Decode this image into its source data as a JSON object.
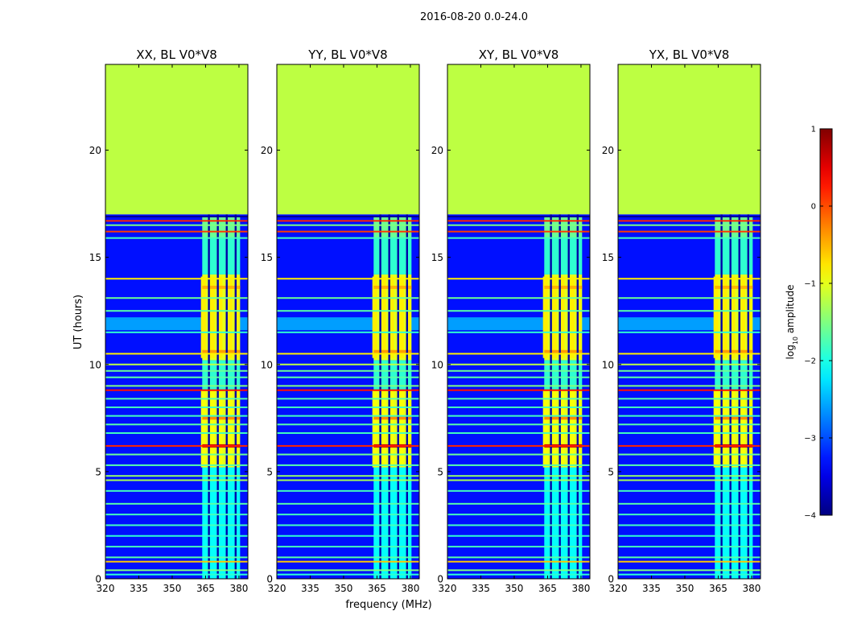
{
  "chart_data": {
    "type": "heatmap",
    "suptitle": "2016-08-20 0.0-24.0",
    "xlabel": "frequency (MHz)",
    "ylabel": "UT (hours)",
    "xlim": [
      320,
      384
    ],
    "ylim": [
      0,
      24
    ],
    "xticks": [
      320,
      335,
      350,
      365,
      380
    ],
    "yticks": [
      0,
      5,
      10,
      15,
      20
    ],
    "panels": [
      {
        "title": "XX, BL V0*V8"
      },
      {
        "title": "YY, BL V0*V8"
      },
      {
        "title": "XY, BL V0*V8"
      },
      {
        "title": "YX, BL V0*V8"
      }
    ],
    "colorbar": {
      "label": "log",
      "label_sub": "10",
      "label_suffix": " amplitude",
      "range": [
        -4,
        1
      ],
      "ticks": [
        1,
        0,
        -1,
        -2,
        -3,
        -4
      ],
      "tick_labels": [
        "1",
        "0",
        "−1",
        "−2",
        "−3",
        "−4"
      ],
      "colormap": "jet"
    },
    "data_end_hour": 17,
    "empty_region_value": -1.2,
    "background_level": -3.3,
    "rfi_band_mhz": [
      363.5,
      380.5
    ],
    "rfi_strong_columns_mhz": [
      364,
      368,
      371.5,
      376,
      379
    ],
    "notch_columns_mhz": [
      366.5,
      370.5,
      374.5,
      378.5
    ],
    "horizontal_lines_hours": [
      {
        "t": 16.9,
        "v": -3.9
      },
      {
        "t": 16.7,
        "v": 0.2
      },
      {
        "t": 16.5,
        "v": -1.5
      },
      {
        "t": 16.2,
        "v": 0.1
      },
      {
        "t": 15.9,
        "v": -1.8
      },
      {
        "t": 14.0,
        "v": -0.8
      },
      {
        "t": 13.1,
        "v": -1.6
      },
      {
        "t": 12.5,
        "v": -1.7
      },
      {
        "t": 11.5,
        "v": -1.9
      },
      {
        "t": 10.5,
        "v": -0.8
      },
      {
        "t": 10.0,
        "v": -1.2
      },
      {
        "t": 9.7,
        "v": -1.6
      },
      {
        "t": 9.4,
        "v": -1.7
      },
      {
        "t": 9.0,
        "v": -1.5
      },
      {
        "t": 8.8,
        "v": 0.3
      },
      {
        "t": 8.4,
        "v": -1.7
      },
      {
        "t": 8.0,
        "v": -1.8
      },
      {
        "t": 7.6,
        "v": -1.8
      },
      {
        "t": 7.2,
        "v": -1.7
      },
      {
        "t": 6.8,
        "v": -1.8
      },
      {
        "t": 6.2,
        "v": 0.2
      },
      {
        "t": 5.8,
        "v": -1.6
      },
      {
        "t": 5.3,
        "v": -1.7
      },
      {
        "t": 4.8,
        "v": -1.4
      },
      {
        "t": 4.6,
        "v": -1.3
      },
      {
        "t": 4.1,
        "v": -1.8
      },
      {
        "t": 3.5,
        "v": -1.7
      },
      {
        "t": 3.0,
        "v": -1.8
      },
      {
        "t": 2.5,
        "v": -1.8
      },
      {
        "t": 2.0,
        "v": -1.9
      },
      {
        "t": 1.5,
        "v": -1.8
      },
      {
        "t": 1.0,
        "v": -1.7
      },
      {
        "t": 0.8,
        "v": -0.6
      },
      {
        "t": 0.4,
        "v": -1.5
      },
      {
        "t": 0.2,
        "v": -1.9
      }
    ]
  }
}
